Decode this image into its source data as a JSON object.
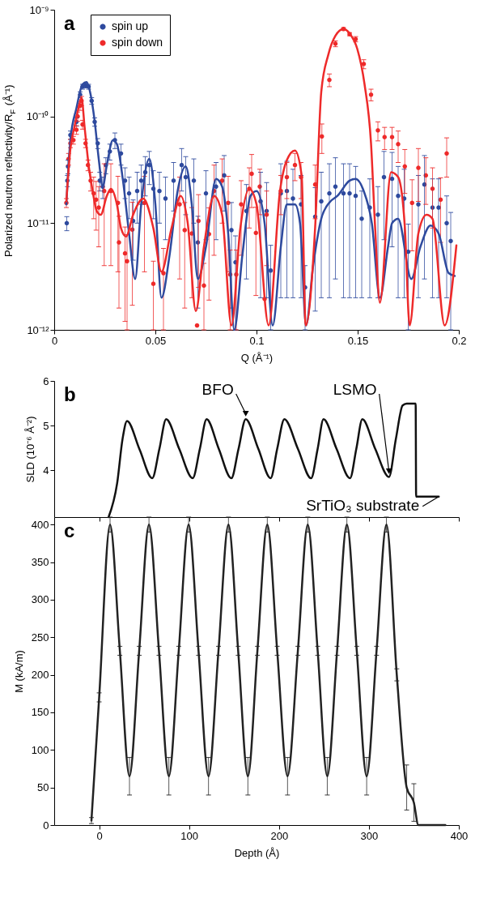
{
  "chart_data": [
    {
      "type": "scatter",
      "xlabel": "Q (Å⁻¹)",
      "ylabel": "Polarized neutron reflectivity/R$_{F}$ (Å⁻¹)",
      "annotations": [
        "a"
      ],
      "log": "y",
      "xlim": [
        0,
        0.2
      ],
      "xticks": [
        0,
        0.05,
        0.1,
        0.15,
        0.2
      ],
      "ylim": [
        1e-12,
        1e-09
      ],
      "yticks": [
        {
          "value": 1e-12,
          "label": "10⁻¹²"
        },
        {
          "value": 1e-11,
          "label": "10⁻¹¹"
        },
        {
          "value": 1e-10,
          "label": "10⁻¹⁰"
        },
        {
          "value": 1e-09,
          "label": "10⁻⁹"
        }
      ],
      "legend": "top left",
      "marker": "circle",
      "series": [
        {
          "name": "spin up",
          "color": "#2e4a9e",
          "x": [
            0.0062,
            0.0065,
            0.0068,
            0.008,
            0.011,
            0.0128,
            0.014,
            0.0155,
            0.017,
            0.0185,
            0.02,
            0.0215,
            0.0225,
            0.024,
            0.0255,
            0.0275,
            0.03,
            0.033,
            0.035,
            0.037,
            0.039,
            0.041,
            0.043,
            0.045,
            0.047,
            0.049,
            0.052,
            0.055,
            0.059,
            0.063,
            0.065,
            0.069,
            0.071,
            0.075,
            0.08,
            0.084,
            0.0876,
            0.0896,
            0.095,
            0.102,
            0.105,
            0.107,
            0.112,
            0.115,
            0.118,
            0.122,
            0.124,
            0.129,
            0.132,
            0.136,
            0.139,
            0.143,
            0.146,
            0.149,
            0.152,
            0.156,
            0.16,
            0.163,
            0.167,
            0.17,
            0.173,
            0.175,
            0.18,
            0.183,
            0.187,
            0.19,
            0.194,
            0.196
          ],
          "values": [
            1e-11,
            2.5e-11,
            3.4e-11,
            6.7e-11,
            8.9e-11,
            1.6e-10,
            1.9e-10,
            1.95e-10,
            1.9e-10,
            1.4e-10,
            8.9e-11,
            5.6e-11,
            2.5e-11,
            2.2e-11,
            3.5e-11,
            4.7e-11,
            6e-11,
            4.5e-11,
            2.5e-11,
            1.9e-11,
            1.05e-11,
            2e-11,
            2.5e-11,
            3e-11,
            3.5e-11,
            2.1e-11,
            2e-11,
            1.7e-11,
            2.5e-11,
            3.5e-11,
            2.7e-11,
            2.5e-11,
            6.6e-12,
            1.9e-11,
            2.2e-11,
            2.8e-11,
            8.6e-12,
            4.3e-12,
            1.3e-11,
            1.6e-11,
            1.3e-11,
            3.6e-12,
            1.9e-11,
            2e-11,
            1.7e-11,
            1.5e-11,
            2.5e-12,
            1.15e-11,
            1.6e-11,
            1.9e-11,
            2.2e-11,
            1.9e-11,
            1.9e-11,
            1.8e-11,
            1.1e-11,
            1.4e-11,
            1.2e-11,
            2.7e-11,
            2.6e-11,
            1.8e-11,
            1.7e-11,
            5.4e-12,
            1.5e-11,
            2.3e-11,
            1.4e-11,
            1.4e-11,
            1e-11,
            6.8e-12
          ],
          "errors": [
            1.5e-12,
            3e-12,
            5e-12,
            6e-12,
            8e-12,
            1e-11,
            1e-11,
            1e-11,
            1e-11,
            1e-11,
            8e-12,
            6e-12,
            5e-12,
            5e-12,
            6e-12,
            8e-12,
            1e-11,
            1e-11,
            8e-12,
            8e-12,
            6e-12,
            1e-11,
            1e-11,
            1.2e-11,
            1.2e-11,
            1e-11,
            1e-11,
            1e-11,
            1.2e-11,
            1.5e-11,
            1.5e-11,
            1.5e-11,
            5e-12,
            1.2e-11,
            1.5e-11,
            1.5e-11,
            7e-12,
            3.3e-12,
            1e-11,
            1.4e-11,
            1.1e-11,
            2.6e-12,
            1.7e-11,
            1.8e-11,
            1.5e-11,
            1.3e-11,
            1.5e-12,
            1e-11,
            1.4e-11,
            1.7e-11,
            1.9e-11,
            1.7e-11,
            1.7e-11,
            1.6e-11,
            9e-12,
            1.2e-11,
            1e-11,
            2e-11,
            2e-11,
            1.6e-11,
            1.5e-11,
            4.4e-12,
            1.3e-11,
            2e-11,
            1.2e-11,
            1.2e-11,
            8e-12,
            5.8e-12
          ]
        },
        {
          "name": "spin down",
          "color": "#ee2a2a",
          "x": [
            0.006,
            0.0071,
            0.008,
            0.0095,
            0.011,
            0.0116,
            0.0128,
            0.0135,
            0.014,
            0.0155,
            0.0167,
            0.018,
            0.0195,
            0.0207,
            0.022,
            0.0247,
            0.028,
            0.0315,
            0.032,
            0.035,
            0.036,
            0.0386,
            0.0446,
            0.049,
            0.054,
            0.062,
            0.0645,
            0.068,
            0.0706,
            0.0713,
            0.074,
            0.0765,
            0.079,
            0.083,
            0.086,
            0.087,
            0.09,
            0.0924,
            0.0964,
            0.0976,
            0.0997,
            0.1016,
            0.104,
            0.105,
            0.112,
            0.115,
            0.119,
            0.122,
            0.129,
            0.1323,
            0.136,
            0.139,
            0.143,
            0.146,
            0.149,
            0.153,
            0.1566,
            0.16,
            0.1633,
            0.167,
            0.17,
            0.1733,
            0.1769,
            0.18,
            0.1837,
            0.187,
            0.191,
            0.194
          ],
          "values": [
            1.55e-11,
            4e-11,
            5.6e-11,
            6e-11,
            7.5e-11,
            1e-10,
            1.26e-10,
            1.4e-10,
            8.4e-11,
            5.6e-11,
            3.5e-11,
            2.5e-11,
            1.9e-11,
            1.66e-11,
            1.4e-11,
            2e-11,
            2e-11,
            1.55e-11,
            6.6e-12,
            5.2e-12,
            4.4e-12,
            8.7e-12,
            1.55e-11,
            2.7e-12,
            3.4e-12,
            1.5e-11,
            8.6e-12,
            8e-12,
            1.1e-12,
            1.05e-11,
            2.6e-12,
            7.9e-12,
            2e-11,
            2.5e-11,
            1.55e-11,
            3.3e-12,
            3.3e-12,
            1.5e-11,
            2.1e-11,
            2.9e-11,
            8.1e-12,
            2.2e-11,
            1.95e-12,
            1.2e-11,
            2e-11,
            2.7e-11,
            3.5e-11,
            2.7e-11,
            2.3e-11,
            6.5e-11,
            2.2e-10,
            4.8e-10,
            6.6e-10,
            5.9e-10,
            5.3e-10,
            3.1e-10,
            1.6e-10,
            7.4e-11,
            6.4e-11,
            6.4e-11,
            5.5e-11,
            3.4e-11,
            1.55e-11,
            3.3e-11,
            2.8e-11,
            2.1e-11,
            1.66e-11,
            4.5e-11
          ],
          "errors": [
            1.5e-12,
            5e-12,
            5e-12,
            5e-12,
            7e-12,
            1e-11,
            1.2e-11,
            1.4e-11,
            8e-12,
            5e-12,
            4e-12,
            5e-12,
            8e-12,
            8e-12,
            8e-12,
            1.6e-11,
            1.6e-11,
            1.2e-11,
            5e-12,
            4e-12,
            3.4e-12,
            7e-12,
            1.2e-11,
            1.7e-12,
            2.4e-12,
            1.2e-11,
            7e-12,
            6e-12,
            null,
            8e-12,
            1.6e-12,
            6e-12,
            1.5e-11,
            1.5e-11,
            1.2e-11,
            2.3e-12,
            2.3e-12,
            1e-11,
            1.2e-11,
            1.5e-11,
            6e-12,
            1e-11,
            null,
            8e-12,
            8e-12,
            1e-11,
            1e-11,
            1e-11,
            1.2e-11,
            2e-11,
            3e-11,
            3e-11,
            2e-11,
            2e-11,
            3e-11,
            3e-11,
            2e-11,
            1.5e-11,
            1.5e-11,
            1.5e-11,
            1.8e-11,
            1.5e-11,
            1e-11,
            1.7e-11,
            1.3e-11,
            1.2e-11,
            1e-11,
            1.8e-11
          ]
        },
        {
          "type": "line",
          "marker": "none",
          "color": "#2e4a9e",
          "x": [
            0.006,
            0.008,
            0.011,
            0.014,
            0.016,
            0.018,
            0.02,
            0.022,
            0.024,
            0.026,
            0.029,
            0.031,
            0.034,
            0.037,
            0.04,
            0.043,
            0.047,
            0.05,
            0.053,
            0.057,
            0.061,
            0.065,
            0.068,
            0.071,
            0.075,
            0.08,
            0.083,
            0.086,
            0.089,
            0.093,
            0.097,
            0.1,
            0.104,
            0.108,
            0.112,
            0.115,
            0.119,
            0.1215,
            0.1245,
            0.128,
            0.132,
            0.136,
            0.14,
            0.146,
            0.149,
            0.153,
            0.157,
            0.161,
            0.165,
            0.167,
            0.17,
            0.1765,
            0.181,
            0.186,
            0.19,
            0.195,
            0.198
          ],
          "values": [
            1.5e-11,
            6e-11,
            1.2e-10,
            2e-10,
            2.1e-10,
            1.6e-10,
            9e-11,
            4e-11,
            2.2e-11,
            3.5e-11,
            6e-11,
            5.5e-11,
            2.5e-11,
            8e-12,
            3e-12,
            1.5e-11,
            4e-11,
            1.5e-11,
            2e-12,
            5e-12,
            2e-11,
            3.4e-11,
            1.5e-11,
            3e-12,
            6e-12,
            2.6e-11,
            2.2e-11,
            8e-12,
            1e-12,
            5e-12,
            1.8e-11,
            2e-11,
            1e-11,
            1.1e-12,
            6e-12,
            1.5e-11,
            1.5e-11,
            1e-11,
            1.1e-12,
            4e-12,
            1.1e-11,
            1.56e-11,
            1.8e-11,
            2.5e-11,
            2.6e-11,
            2e-11,
            1e-11,
            2e-12,
            6e-12,
            1e-11,
            1.1e-11,
            3e-12,
            6e-12,
            9.5e-12,
            8e-12,
            3.4e-12,
            3.2e-12
          ]
        },
        {
          "type": "line",
          "marker": "none",
          "color": "#ee2a2a",
          "x": [
            0.006,
            0.008,
            0.01,
            0.012,
            0.0135,
            0.015,
            0.017,
            0.019,
            0.021,
            0.023,
            0.026,
            0.028,
            0.031,
            0.033,
            0.0355,
            0.039,
            0.044,
            0.049,
            0.053,
            0.058,
            0.0625,
            0.066,
            0.07,
            0.074,
            0.079,
            0.083,
            0.0876,
            0.092,
            0.0964,
            0.1,
            0.106,
            0.1116,
            0.115,
            0.119,
            0.1223,
            0.1243,
            0.129,
            0.132,
            0.1355,
            0.139,
            0.143,
            0.146,
            0.1498,
            0.1534,
            0.1566,
            0.1586,
            0.161,
            0.1665,
            0.17,
            0.1733,
            0.1757,
            0.18,
            0.184,
            0.187,
            0.193,
            0.1988
          ],
          "values": [
            1.6e-11,
            5e-11,
            8e-11,
            1.2e-10,
            1.5e-10,
            8e-11,
            3.5e-11,
            2e-11,
            1.3e-11,
            1.2e-11,
            1.8e-11,
            2.1e-11,
            1.5e-11,
            9e-12,
            7.5e-12,
            1.2e-11,
            1.7e-11,
            9e-12,
            3.5e-12,
            9e-12,
            1.8e-11,
            1e-11,
            1.5e-12,
            6e-12,
            1.8e-11,
            1.2e-11,
            1.1e-12,
            9e-12,
            2.1e-11,
            1.5e-11,
            1.1e-12,
            2e-11,
            3.9e-11,
            4.8e-11,
            2.8e-11,
            1.1e-12,
            9.3e-12,
            1.7e-10,
            3.8e-10,
            5.7e-10,
            6.6e-10,
            6e-10,
            4.3e-10,
            2e-10,
            5.6e-11,
            9.3e-12,
            1.8e-12,
            3e-11,
            2.7e-11,
            9.3e-12,
            1.1e-12,
            8e-12,
            1.2e-11,
            1.1e-11,
            1.1e-12,
            6.2e-12
          ]
        }
      ]
    },
    {
      "type": "line",
      "ylabel": "SLD (10⁻⁶ Å⁻²)",
      "annotations": [
        "b",
        {
          "text": "BFO",
          "x": 163,
          "y": 5.14
        },
        {
          "text": "LSMO",
          "x": 322.3,
          "y": 3.85
        },
        {
          "text": "SrTiO₃ substrate",
          "x": 377.7,
          "y": 3.41
        }
      ],
      "xlim": [
        -50,
        400
      ],
      "xticks": [
        0,
        100,
        200,
        300,
        400
      ],
      "ylim": [
        2.95,
        6
      ],
      "yticks": [
        4,
        5,
        6
      ],
      "tick_labels": "y",
      "marker": "none",
      "series": [
        {
          "color": "#111111",
          "x": [
            10.5,
            20,
            26,
            31,
            45,
            59,
            67,
            74.5,
            89,
            104,
            112,
            119.5,
            133,
            147,
            155,
            163,
            177,
            190.7,
            198,
            206,
            221,
            235.7,
            243,
            249.5,
            264,
            279,
            286,
            292.7,
            307,
            322.3,
            330,
            337.5,
            342,
            352,
            352.5,
            377.7
          ],
          "values": [
            2.95,
            3.71,
            4.7,
            5.1,
            4.46,
            3.82,
            4.48,
            5.14,
            4.48,
            3.82,
            4.48,
            5.14,
            4.48,
            3.82,
            4.48,
            5.14,
            4.48,
            3.82,
            4.48,
            5.14,
            4.48,
            3.82,
            4.48,
            5.14,
            4.48,
            3.82,
            4.48,
            5.14,
            4.48,
            3.85,
            4.7,
            5.45,
            5.49,
            5.49,
            3.41,
            3.41
          ]
        }
      ]
    },
    {
      "type": "line",
      "xlabel": "Depth (Å)",
      "ylabel": "M (kA/m)",
      "annotations": [
        "c"
      ],
      "xlim": [
        -50,
        400
      ],
      "xticks": [
        0,
        100,
        200,
        300,
        400
      ],
      "ylim": [
        0,
        410
      ],
      "yticks": [
        0,
        50,
        100,
        150,
        200,
        250,
        300,
        350,
        400
      ],
      "marker": "none",
      "series": [
        {
          "color": "#222222",
          "x": [
            -8.6,
            0,
            12.1,
            23,
            33.7,
            44.5,
            55.4,
            66.5,
            77.5,
            88.5,
            99.5,
            110.5,
            121.6,
            132.7,
            143.8,
            154.6,
            165.4,
            176,
            187,
            198,
            209.5,
            221,
            232,
            243,
            253.7,
            264.6,
            275.5,
            286.5,
            297.5,
            308.5,
            319.5,
            331,
            342,
            350,
            355,
            385
          ],
          "values": [
            6,
            170,
            400,
            232,
            65,
            232,
            400,
            232,
            65,
            232,
            400,
            232,
            65,
            232,
            400,
            232,
            65,
            232,
            400,
            232,
            65,
            232,
            400,
            232,
            65,
            232,
            400,
            232,
            65,
            232,
            400,
            200,
            50,
            30,
            0,
            0
          ],
          "errors": [
            4,
            6,
            10,
            6,
            25,
            6,
            10,
            6,
            25,
            6,
            10,
            6,
            25,
            6,
            10,
            6,
            25,
            6,
            10,
            6,
            25,
            6,
            10,
            6,
            25,
            6,
            10,
            6,
            25,
            6,
            10,
            8,
            30,
            25,
            null,
            null
          ]
        }
      ]
    }
  ]
}
